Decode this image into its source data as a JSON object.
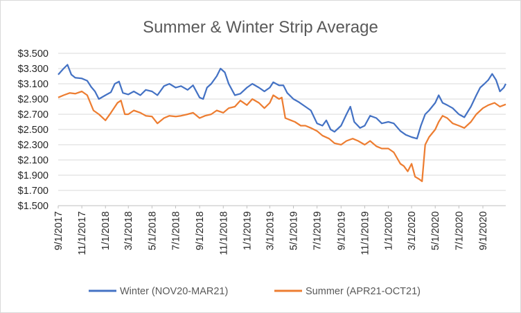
{
  "chart_data": {
    "type": "line",
    "title": "Summer  & Winter Strip Average",
    "xlabel": "",
    "ylabel": "",
    "ylim": [
      1.5,
      3.5
    ],
    "y_ticks": [
      "$3.500",
      "$3.300",
      "$3.100",
      "$2.900",
      "$2.700",
      "$2.500",
      "$2.300",
      "$2.100",
      "$1.900",
      "$1.700",
      "$1.500"
    ],
    "x_ticks": [
      "9/1/2017",
      "11/1/2017",
      "1/1/2018",
      "3/1/2018",
      "5/1/2018",
      "7/1/2018",
      "9/1/2018",
      "11/1/2018",
      "1/1/2019",
      "3/1/2019",
      "5/1/2019",
      "7/1/2019",
      "9/1/2019",
      "11/1/2019",
      "1/1/2020",
      "3/1/2020",
      "5/1/2020",
      "7/1/2020",
      "9/1/2020"
    ],
    "x_range": [
      "2017-09-01",
      "2020-10-30"
    ],
    "grid": true,
    "legend_position": "bottom",
    "series": [
      {
        "name": "Winter (NOV20-MAR21)",
        "color": "#4472c4",
        "points": [
          [
            "2017-09-01",
            3.22
          ],
          [
            "2017-09-15",
            3.3
          ],
          [
            "2017-09-25",
            3.35
          ],
          [
            "2017-10-05",
            3.22
          ],
          [
            "2017-10-15",
            3.18
          ],
          [
            "2017-11-01",
            3.17
          ],
          [
            "2017-11-15",
            3.14
          ],
          [
            "2017-11-25",
            3.06
          ],
          [
            "2017-12-05",
            3.0
          ],
          [
            "2017-12-15",
            2.9
          ],
          [
            "2018-01-01",
            2.95
          ],
          [
            "2018-01-15",
            2.99
          ],
          [
            "2018-01-25",
            3.1
          ],
          [
            "2018-02-05",
            3.13
          ],
          [
            "2018-02-15",
            2.98
          ],
          [
            "2018-03-01",
            2.96
          ],
          [
            "2018-03-15",
            3.0
          ],
          [
            "2018-04-01",
            2.95
          ],
          [
            "2018-04-15",
            3.02
          ],
          [
            "2018-05-01",
            3.0
          ],
          [
            "2018-05-15",
            2.95
          ],
          [
            "2018-06-01",
            3.07
          ],
          [
            "2018-06-15",
            3.1
          ],
          [
            "2018-07-01",
            3.05
          ],
          [
            "2018-07-15",
            3.07
          ],
          [
            "2018-08-01",
            3.02
          ],
          [
            "2018-08-15",
            3.08
          ],
          [
            "2018-09-01",
            2.92
          ],
          [
            "2018-09-10",
            2.9
          ],
          [
            "2018-09-20",
            3.05
          ],
          [
            "2018-10-01",
            3.1
          ],
          [
            "2018-10-15",
            3.2
          ],
          [
            "2018-10-25",
            3.3
          ],
          [
            "2018-11-05",
            3.25
          ],
          [
            "2018-11-15",
            3.1
          ],
          [
            "2018-12-01",
            2.95
          ],
          [
            "2018-12-15",
            2.97
          ],
          [
            "2019-01-01",
            3.05
          ],
          [
            "2019-01-15",
            3.1
          ],
          [
            "2019-02-01",
            3.05
          ],
          [
            "2019-02-15",
            3.0
          ],
          [
            "2019-03-01",
            3.05
          ],
          [
            "2019-03-10",
            3.12
          ],
          [
            "2019-03-25",
            3.08
          ],
          [
            "2019-04-05",
            3.08
          ],
          [
            "2019-04-15",
            2.98
          ],
          [
            "2019-05-01",
            2.9
          ],
          [
            "2019-05-15",
            2.86
          ],
          [
            "2019-06-01",
            2.8
          ],
          [
            "2019-06-15",
            2.75
          ],
          [
            "2019-07-01",
            2.58
          ],
          [
            "2019-07-15",
            2.55
          ],
          [
            "2019-07-25",
            2.62
          ],
          [
            "2019-08-05",
            2.5
          ],
          [
            "2019-08-15",
            2.47
          ],
          [
            "2019-09-01",
            2.55
          ],
          [
            "2019-09-15",
            2.7
          ],
          [
            "2019-09-25",
            2.8
          ],
          [
            "2019-10-05",
            2.6
          ],
          [
            "2019-10-20",
            2.52
          ],
          [
            "2019-11-01",
            2.55
          ],
          [
            "2019-11-15",
            2.68
          ],
          [
            "2019-12-01",
            2.65
          ],
          [
            "2019-12-15",
            2.58
          ],
          [
            "2020-01-01",
            2.6
          ],
          [
            "2020-01-15",
            2.58
          ],
          [
            "2020-02-01",
            2.48
          ],
          [
            "2020-02-15",
            2.43
          ],
          [
            "2020-03-01",
            2.4
          ],
          [
            "2020-03-15",
            2.38
          ],
          [
            "2020-03-25",
            2.55
          ],
          [
            "2020-04-05",
            2.7
          ],
          [
            "2020-04-15",
            2.75
          ],
          [
            "2020-05-01",
            2.85
          ],
          [
            "2020-05-10",
            2.95
          ],
          [
            "2020-05-20",
            2.85
          ],
          [
            "2020-06-01",
            2.82
          ],
          [
            "2020-06-15",
            2.78
          ],
          [
            "2020-07-01",
            2.7
          ],
          [
            "2020-07-15",
            2.66
          ],
          [
            "2020-08-01",
            2.8
          ],
          [
            "2020-08-15",
            2.95
          ],
          [
            "2020-08-25",
            3.05
          ],
          [
            "2020-09-05",
            3.1
          ],
          [
            "2020-09-15",
            3.15
          ],
          [
            "2020-09-25",
            3.23
          ],
          [
            "2020-10-05",
            3.15
          ],
          [
            "2020-10-15",
            3.0
          ],
          [
            "2020-10-25",
            3.05
          ],
          [
            "2020-10-30",
            3.1
          ]
        ]
      },
      {
        "name": "Summer  (APR21-OCT21)",
        "color": "#ed7d31",
        "points": [
          [
            "2017-09-01",
            2.92
          ],
          [
            "2017-09-15",
            2.95
          ],
          [
            "2017-10-01",
            2.98
          ],
          [
            "2017-10-15",
            2.97
          ],
          [
            "2017-11-01",
            3.0
          ],
          [
            "2017-11-15",
            2.95
          ],
          [
            "2017-12-01",
            2.75
          ],
          [
            "2017-12-15",
            2.7
          ],
          [
            "2018-01-01",
            2.62
          ],
          [
            "2018-01-15",
            2.72
          ],
          [
            "2018-02-01",
            2.85
          ],
          [
            "2018-02-10",
            2.88
          ],
          [
            "2018-02-20",
            2.7
          ],
          [
            "2018-03-01",
            2.7
          ],
          [
            "2018-03-15",
            2.75
          ],
          [
            "2018-04-01",
            2.72
          ],
          [
            "2018-04-15",
            2.68
          ],
          [
            "2018-05-01",
            2.67
          ],
          [
            "2018-05-15",
            2.58
          ],
          [
            "2018-06-01",
            2.65
          ],
          [
            "2018-06-15",
            2.68
          ],
          [
            "2018-07-01",
            2.67
          ],
          [
            "2018-07-15",
            2.68
          ],
          [
            "2018-08-01",
            2.7
          ],
          [
            "2018-08-15",
            2.72
          ],
          [
            "2018-09-01",
            2.65
          ],
          [
            "2018-09-15",
            2.68
          ],
          [
            "2018-10-01",
            2.7
          ],
          [
            "2018-10-15",
            2.75
          ],
          [
            "2018-11-01",
            2.72
          ],
          [
            "2018-11-15",
            2.78
          ],
          [
            "2018-12-01",
            2.8
          ],
          [
            "2018-12-15",
            2.88
          ],
          [
            "2019-01-01",
            2.82
          ],
          [
            "2019-01-15",
            2.9
          ],
          [
            "2019-02-01",
            2.85
          ],
          [
            "2019-02-15",
            2.78
          ],
          [
            "2019-03-01",
            2.85
          ],
          [
            "2019-03-10",
            2.95
          ],
          [
            "2019-03-25",
            2.9
          ],
          [
            "2019-04-01",
            2.92
          ],
          [
            "2019-04-10",
            2.65
          ],
          [
            "2019-04-25",
            2.62
          ],
          [
            "2019-05-05",
            2.6
          ],
          [
            "2019-05-20",
            2.55
          ],
          [
            "2019-06-01",
            2.55
          ],
          [
            "2019-06-15",
            2.52
          ],
          [
            "2019-07-01",
            2.48
          ],
          [
            "2019-07-15",
            2.42
          ],
          [
            "2019-08-01",
            2.38
          ],
          [
            "2019-08-15",
            2.32
          ],
          [
            "2019-09-01",
            2.3
          ],
          [
            "2019-09-15",
            2.35
          ],
          [
            "2019-10-01",
            2.38
          ],
          [
            "2019-10-15",
            2.35
          ],
          [
            "2019-11-01",
            2.3
          ],
          [
            "2019-11-15",
            2.35
          ],
          [
            "2019-12-01",
            2.28
          ],
          [
            "2019-12-15",
            2.25
          ],
          [
            "2020-01-01",
            2.25
          ],
          [
            "2020-01-15",
            2.2
          ],
          [
            "2020-02-01",
            2.05
          ],
          [
            "2020-02-10",
            2.02
          ],
          [
            "2020-02-20",
            1.95
          ],
          [
            "2020-03-01",
            2.05
          ],
          [
            "2020-03-10",
            1.88
          ],
          [
            "2020-03-20",
            1.85
          ],
          [
            "2020-03-28",
            1.82
          ],
          [
            "2020-04-05",
            2.3
          ],
          [
            "2020-04-15",
            2.4
          ],
          [
            "2020-05-01",
            2.5
          ],
          [
            "2020-05-10",
            2.6
          ],
          [
            "2020-05-20",
            2.68
          ],
          [
            "2020-06-01",
            2.65
          ],
          [
            "2020-06-15",
            2.58
          ],
          [
            "2020-07-01",
            2.55
          ],
          [
            "2020-07-15",
            2.52
          ],
          [
            "2020-08-01",
            2.6
          ],
          [
            "2020-08-15",
            2.7
          ],
          [
            "2020-09-01",
            2.78
          ],
          [
            "2020-09-15",
            2.82
          ],
          [
            "2020-10-01",
            2.85
          ],
          [
            "2020-10-15",
            2.8
          ],
          [
            "2020-10-30",
            2.83
          ]
        ]
      }
    ]
  }
}
